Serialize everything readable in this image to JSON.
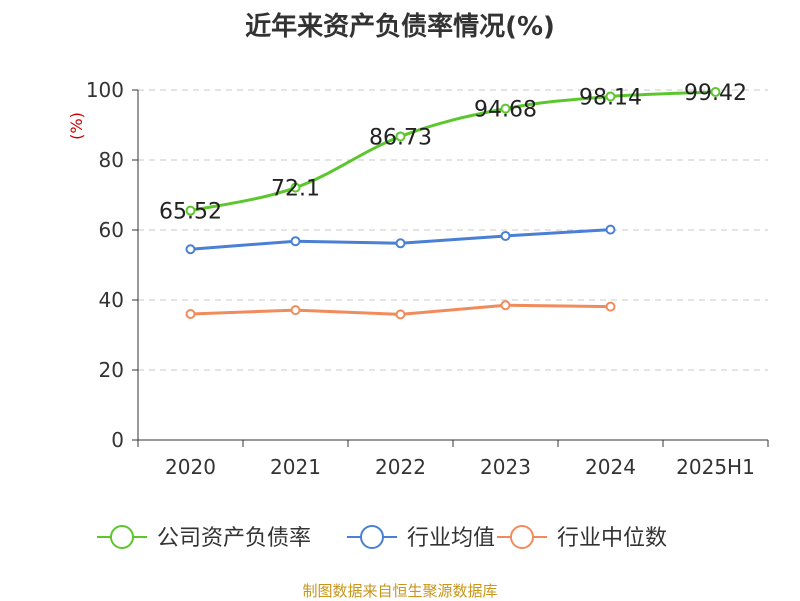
{
  "title": "近年来资产负债率情况(%)",
  "source": "制图数据来自恒生聚源数据库",
  "chart_data": {
    "type": "line",
    "title": "近年来资产负债率情况(%)",
    "ylabel": "(%)",
    "xlabel": "",
    "ylim": [
      0,
      100
    ],
    "yticks": [
      "0",
      "20",
      "40",
      "60",
      "80",
      "100"
    ],
    "categories": [
      "2020",
      "2021",
      "2022",
      "2023",
      "2024",
      "2025H1"
    ],
    "grid": true,
    "legend_position": "bottom",
    "series": [
      {
        "name": "公司资产负债率",
        "color": "#5cc72c",
        "values": [
          65.52,
          72.1,
          86.73,
          94.68,
          98.14,
          99.42
        ],
        "labels": [
          "65.52",
          "72.1",
          "86.73",
          "94.68",
          "98.14",
          "99.42"
        ],
        "smooth": true
      },
      {
        "name": "行业均值",
        "color": "#4a7fd6",
        "values": [
          54.5,
          56.8,
          56.2,
          58.3,
          60.1,
          null
        ],
        "smooth": false
      },
      {
        "name": "行业中位数",
        "color": "#f28b5c",
        "values": [
          36.0,
          37.1,
          35.9,
          38.5,
          38.1,
          null
        ],
        "smooth": false
      }
    ]
  }
}
